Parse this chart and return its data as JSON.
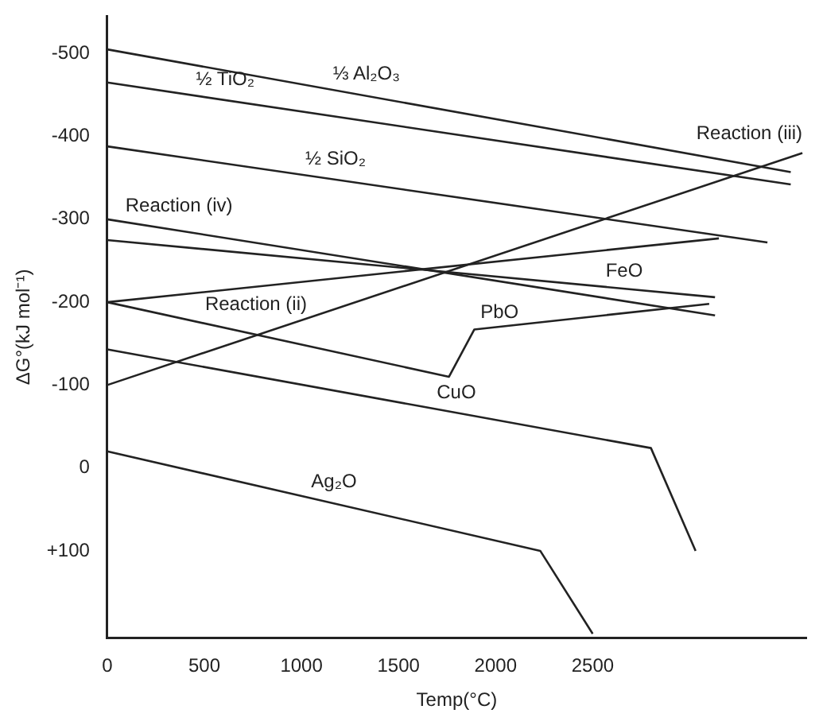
{
  "chart_data": {
    "type": "line",
    "xlabel": "Temp(°C)",
    "ylabel": "ΔG°(kJ mol⁻¹)",
    "xlim": [
      0,
      3600
    ],
    "xticks": [
      0,
      500,
      1000,
      1500,
      2000,
      2500
    ],
    "ylim": [
      205,
      -545
    ],
    "yticks": [
      -500,
      -400,
      -300,
      -200,
      -100,
      0,
      {
        "value": 100,
        "label": "+100"
      }
    ],
    "grid": false,
    "legend": false,
    "marker": "none",
    "line_style": "solid",
    "series": [
      {
        "name": "⅓ Al₂O₃",
        "color": "#222222",
        "x": [
          0,
          3520
        ],
        "values": [
          -505,
          -357
        ]
      },
      {
        "name": "½ TiO₂",
        "color": "#222222",
        "x": [
          0,
          3520
        ],
        "values": [
          -465,
          -342
        ]
      },
      {
        "name": "½ SiO₂",
        "color": "#222222",
        "x": [
          0,
          3400
        ],
        "values": [
          -388,
          -272
        ]
      },
      {
        "name": "Reaction (iv)",
        "color": "#222222",
        "x": [
          0,
          3130
        ],
        "values": [
          -300,
          -184
        ]
      },
      {
        "name": "FeO",
        "color": "#222222",
        "x": [
          0,
          3130
        ],
        "values": [
          -275,
          -206
        ]
      },
      {
        "name": "Reaction (ii)",
        "color": "#222222",
        "x": [
          0,
          3150
        ],
        "values": [
          -200,
          -277
        ]
      },
      {
        "name": "Reaction (iii)",
        "color": "#222222",
        "x": [
          0,
          3580
        ],
        "values": [
          -100,
          -380
        ]
      },
      {
        "name": "PbO",
        "color": "#222222",
        "x": [
          0,
          1760,
          1890,
          3100
        ],
        "values": [
          -200,
          -110,
          -167,
          -198
        ]
      },
      {
        "name": "CuO",
        "color": "#222222",
        "x": [
          0,
          2800,
          3030
        ],
        "values": [
          -143,
          -24,
          100
        ]
      },
      {
        "name": "Ag₂O",
        "color": "#222222",
        "x": [
          0,
          2230,
          2500
        ],
        "values": [
          -20,
          100,
          200
        ]
      }
    ]
  }
}
